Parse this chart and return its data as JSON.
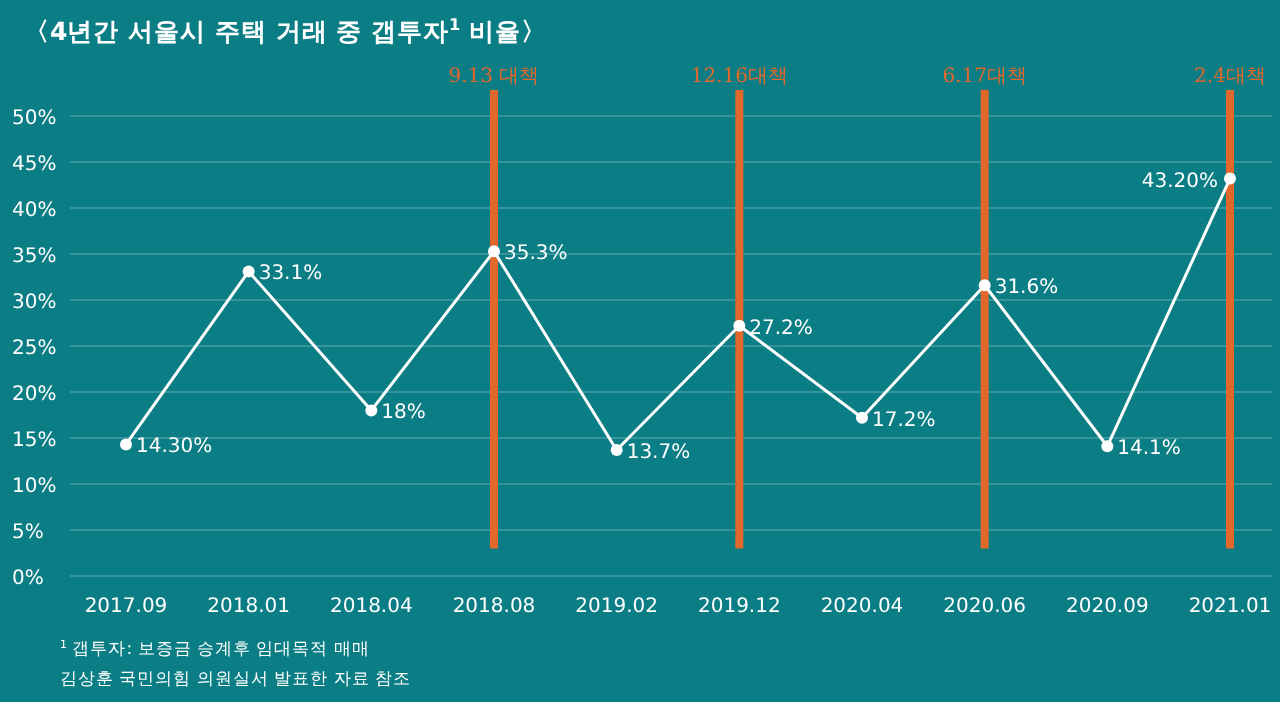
{
  "chart_data": {
    "type": "line",
    "title": "〈4년간 서울시 주택 거래 중 갭투자$^{1}$ 비율〉",
    "categories": [
      "2017.09",
      "2018.01",
      "2018.04",
      "2018.08",
      "2019.02",
      "2019.12",
      "2020.04",
      "2020.06",
      "2020.09",
      "2021.01"
    ],
    "series": [
      {
        "color": "#ffffff",
        "values": [
          14.3,
          33.1,
          18,
          35.3,
          13.7,
          27.2,
          17.2,
          31.6,
          14.1,
          43.2
        ],
        "value_labels": [
          "14.30%",
          "33.1%",
          "18%",
          "35.3%",
          "13.7%",
          "27.2%",
          "17.2%",
          "31.6%",
          "14.1%",
          "43.20%"
        ]
      }
    ],
    "ylim": [
      0,
      50
    ],
    "yticks": [
      {
        "value": 0,
        "label": "0%"
      },
      {
        "value": 5,
        "label": "5%"
      },
      {
        "value": 10,
        "label": "10%"
      },
      {
        "value": 15,
        "label": "15%"
      },
      {
        "value": 20,
        "label": "20%"
      },
      {
        "value": 25,
        "label": "25%"
      },
      {
        "value": 30,
        "label": "30%"
      },
      {
        "value": 35,
        "label": "35%"
      },
      {
        "value": 40,
        "label": "40%"
      },
      {
        "value": 45,
        "label": "45%"
      },
      {
        "value": 50,
        "label": "50%"
      }
    ],
    "grid": "y",
    "marker": "circle",
    "line_style": "solid",
    "ref_lines": [
      {
        "axis": "x",
        "value": "2018.08",
        "label": "9.13 대책",
        "color": "#e2672a"
      },
      {
        "axis": "x",
        "value": "2019.12",
        "label": "12.16대책",
        "color": "#e2672a"
      },
      {
        "axis": "x",
        "value": "2020.06",
        "label": "6.17대책",
        "color": "#e2672a"
      },
      {
        "axis": "x",
        "value": "2021.01",
        "label": "2.4대책",
        "color": "#e2672a"
      }
    ],
    "annotations": [
      "$^{1}$ 갭투자: 보증금 승계후 임대목적 매매",
      "김상훈 국민의힘 의원실서 발표한 자료 참조"
    ]
  }
}
